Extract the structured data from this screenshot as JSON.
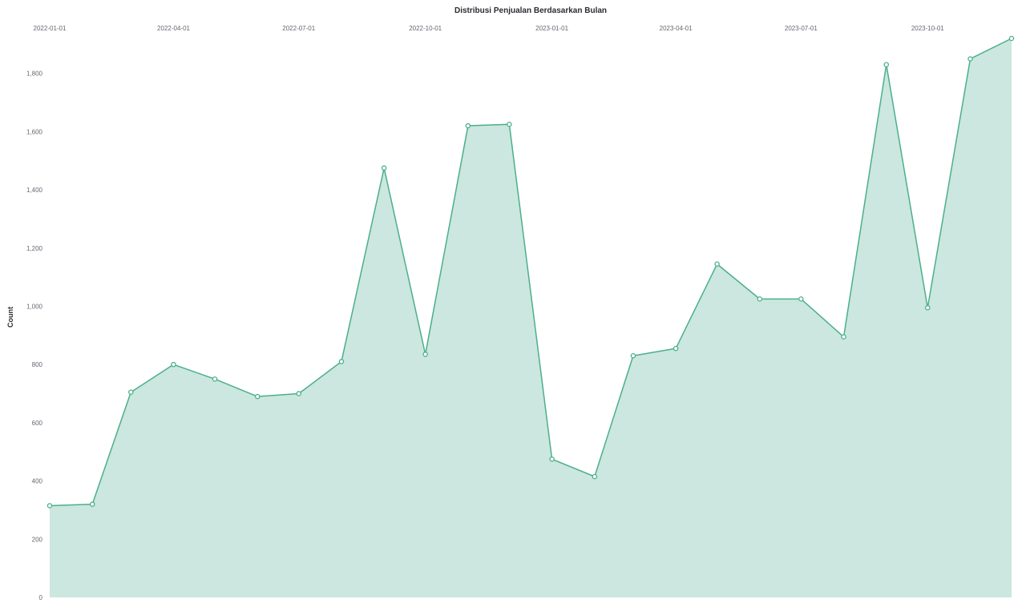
{
  "chart_data": {
    "type": "area",
    "title": "Distribusi Penjualan Berdasarkan Bulan",
    "xlabel": "",
    "ylabel": "Count",
    "x_axis_position": "top",
    "x_tick_labels": [
      "2022-01-01",
      "2022-04-01",
      "2022-07-01",
      "2022-10-01",
      "2023-01-01",
      "2023-04-01",
      "2023-07-01",
      "2023-10-01"
    ],
    "y_ticks": [
      0,
      200,
      400,
      600,
      800,
      1000,
      1200,
      1400,
      1600,
      1800
    ],
    "y_tick_labels": [
      "0",
      "200",
      "400",
      "600",
      "800",
      "1,000",
      "1,200",
      "1,400",
      "1,600",
      "1,800"
    ],
    "ylim": [
      0,
      1920
    ],
    "x_range": [
      "2022-01-01",
      "2023-12-01"
    ],
    "grid": false,
    "colors": {
      "line": "#4caf8a",
      "fill": "#cbe7df",
      "marker_fill": "#ffffff"
    },
    "x": [
      "2022-01-01",
      "2022-02-01",
      "2022-03-01",
      "2022-04-01",
      "2022-05-01",
      "2022-06-01",
      "2022-07-01",
      "2022-08-01",
      "2022-09-01",
      "2022-10-01",
      "2022-11-01",
      "2022-12-01",
      "2023-01-01",
      "2023-02-01",
      "2023-03-01",
      "2023-04-01",
      "2023-05-01",
      "2023-06-01",
      "2023-07-01",
      "2023-08-01",
      "2023-09-01",
      "2023-10-01",
      "2023-11-01",
      "2023-12-01"
    ],
    "values": [
      315,
      320,
      705,
      800,
      750,
      690,
      700,
      810,
      1475,
      835,
      1620,
      1625,
      475,
      415,
      830,
      855,
      1145,
      1025,
      1025,
      895,
      1830,
      995,
      1850,
      1920
    ]
  }
}
